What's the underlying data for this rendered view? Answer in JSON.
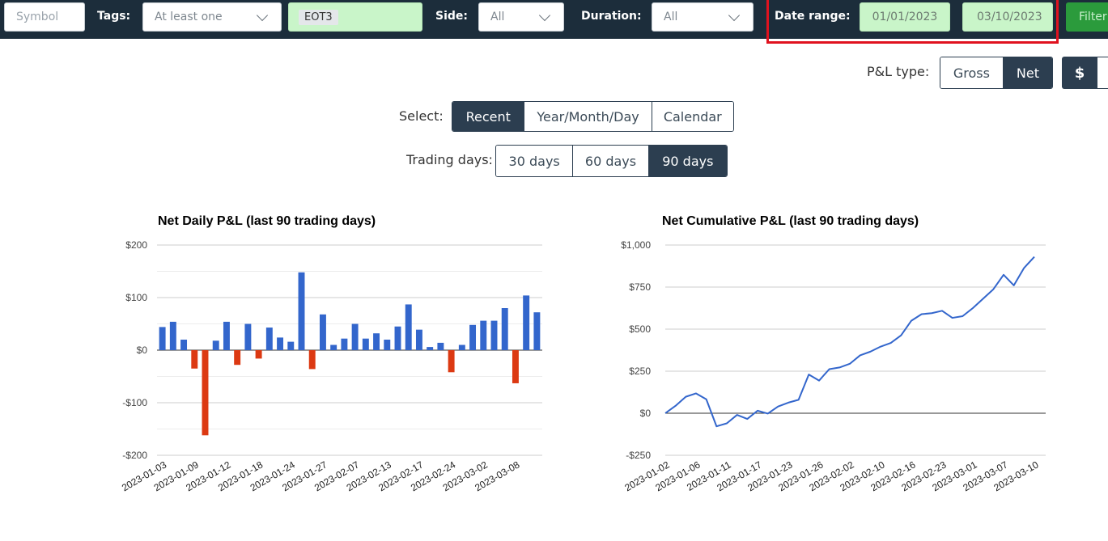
{
  "filter_bar": {
    "symbol_placeholder": "Symbol",
    "tags_label": "Tags:",
    "tags_mode_value": "At least one",
    "selected_tag": "EOT3",
    "side_label": "Side:",
    "side_value": "All",
    "duration_label": "Duration:",
    "duration_value": "All",
    "date_range_label": "Date range:",
    "date_start": "01/01/2023",
    "date_end": "03/10/2023",
    "filter_button_label": "Filter"
  },
  "pnl_type": {
    "label": "P&L type:",
    "options": [
      "Gross",
      "Net"
    ],
    "selected": "Net",
    "unit_selected": "$"
  },
  "select_mode": {
    "label": "Select:",
    "options": [
      "Recent",
      "Year/Month/Day",
      "Calendar"
    ],
    "selected": "Recent"
  },
  "trading_days": {
    "label": "Trading days:",
    "options": [
      "30 days",
      "60 days",
      "90 days"
    ],
    "selected": "90 days"
  },
  "colors": {
    "positive_bar": "#3366cc",
    "negative_bar": "#dc3912",
    "line": "#3366cc",
    "navbar": "#1c2d3b",
    "active_button": "#2c3e50",
    "date_field": "#c9f5c9",
    "highlight": "#e0121f",
    "filter_button": "#2b9b3c"
  },
  "chart_data": [
    {
      "type": "bar",
      "title": "Net Daily P&L (last 90 trading days)",
      "y_tick_labels": [
        "$200",
        "$100",
        "$0",
        "-$100",
        "-$200"
      ],
      "y_ticks": [
        200,
        100,
        0,
        -100,
        -200
      ],
      "ylim": [
        -200,
        200
      ],
      "x_tick_labels": [
        "2023-01-03",
        "2023-01-09",
        "2023-01-12",
        "2023-01-18",
        "2023-01-24",
        "2023-01-27",
        "2023-02-07",
        "2023-02-13",
        "2023-02-17",
        "2023-02-24",
        "2023-03-02",
        "2023-03-08"
      ],
      "x_tick_every": 3,
      "grid": true,
      "legend": "none",
      "values": [
        44,
        54,
        20,
        -35,
        -162,
        18,
        54,
        -28,
        50,
        -16,
        43,
        24,
        16,
        148,
        -36,
        68,
        10,
        22,
        50,
        22,
        32,
        20,
        45,
        87,
        39,
        6,
        14,
        -42,
        10,
        48,
        56,
        56,
        80,
        -63,
        104,
        72
      ]
    },
    {
      "type": "line",
      "title": "Net Cumulative P&L (last 90 trading days)",
      "y_tick_labels": [
        "$1,000",
        "$750",
        "$500",
        "$250",
        "$0",
        "-$250"
      ],
      "y_ticks": [
        1000,
        750,
        500,
        250,
        0,
        -250
      ],
      "ylim": [
        -250,
        1000
      ],
      "x_tick_labels": [
        "2023-01-02",
        "2023-01-06",
        "2023-01-11",
        "2023-01-17",
        "2023-01-23",
        "2023-01-26",
        "2023-02-02",
        "2023-02-10",
        "2023-02-16",
        "2023-02-23",
        "2023-03-01",
        "2023-03-07",
        "2023-03-10"
      ],
      "x_tick_every": 3,
      "grid": true,
      "legend": "none",
      "values": [
        0,
        44,
        98,
        118,
        83,
        -78,
        -60,
        -10,
        -34,
        15,
        -2,
        40,
        63,
        80,
        230,
        194,
        262,
        272,
        294,
        344,
        366,
        396,
        418,
        463,
        550,
        589,
        595,
        609,
        567,
        577,
        625,
        681,
        737,
        823,
        760,
        864,
        930
      ]
    }
  ]
}
